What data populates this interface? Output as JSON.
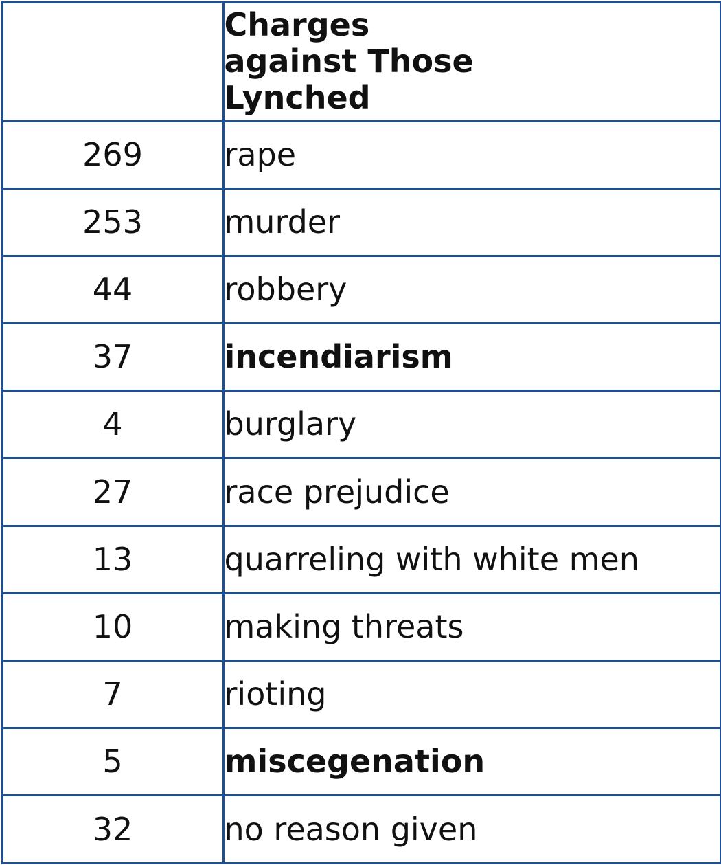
{
  "table": {
    "header": {
      "count": "",
      "charge": "Charges against Those Lynched"
    },
    "rows": [
      {
        "count": "269",
        "charge": "rape",
        "bold": false
      },
      {
        "count": "253",
        "charge": "murder",
        "bold": false
      },
      {
        "count": "44",
        "charge": "robbery",
        "bold": false
      },
      {
        "count": "37",
        "charge": "incendiarism",
        "bold": true
      },
      {
        "count": "4",
        "charge": "burglary",
        "bold": false
      },
      {
        "count": "27",
        "charge": "race prejudice",
        "bold": false
      },
      {
        "count": "13",
        "charge": "quarreling with white men",
        "bold": false
      },
      {
        "count": "10",
        "charge": "making threats",
        "bold": false
      },
      {
        "count": "7",
        "charge": "rioting",
        "bold": false
      },
      {
        "count": "5",
        "charge": "miscegenation",
        "bold": true
      },
      {
        "count": "32",
        "charge": "no reason given",
        "bold": false
      }
    ]
  },
  "colors": {
    "border": "#1d4f91",
    "text": "#111111",
    "background": "#ffffff"
  }
}
